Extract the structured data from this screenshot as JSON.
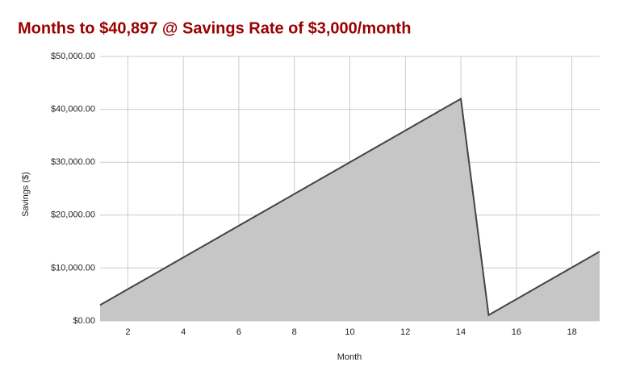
{
  "chart_data": {
    "type": "area",
    "title": "Months to $40,897 @ Savings Rate of $3,000/month",
    "x_label": "Month",
    "y_label": "Savings ($)",
    "x": [
      1,
      2,
      3,
      4,
      5,
      6,
      7,
      8,
      9,
      10,
      11,
      12,
      13,
      14,
      15,
      16,
      17,
      18,
      19
    ],
    "series": [
      {
        "name": "Savings",
        "color": "#c6c6c6",
        "line_color": "#444444",
        "values": [
          3000,
          6000,
          9000,
          12000,
          15000,
          18000,
          21000,
          24000,
          27000,
          30000,
          33000,
          36000,
          39000,
          42000,
          1103,
          4103,
          7103,
          10103,
          13103
        ]
      }
    ],
    "xlim": [
      1,
      19
    ],
    "xticks": [
      2,
      4,
      6,
      8,
      10,
      12,
      14,
      16,
      18
    ],
    "ylim": [
      0,
      50000
    ],
    "yticks": [
      {
        "value": 0,
        "label": "$0.00"
      },
      {
        "value": 10000,
        "label": "$10,000.00"
      },
      {
        "value": 20000,
        "label": "$20,000.00"
      },
      {
        "value": 30000,
        "label": "$30,000.00"
      },
      {
        "value": 40000,
        "label": "$40,000.00"
      },
      {
        "value": 50000,
        "label": "$50,000.00"
      }
    ],
    "grid": true
  }
}
